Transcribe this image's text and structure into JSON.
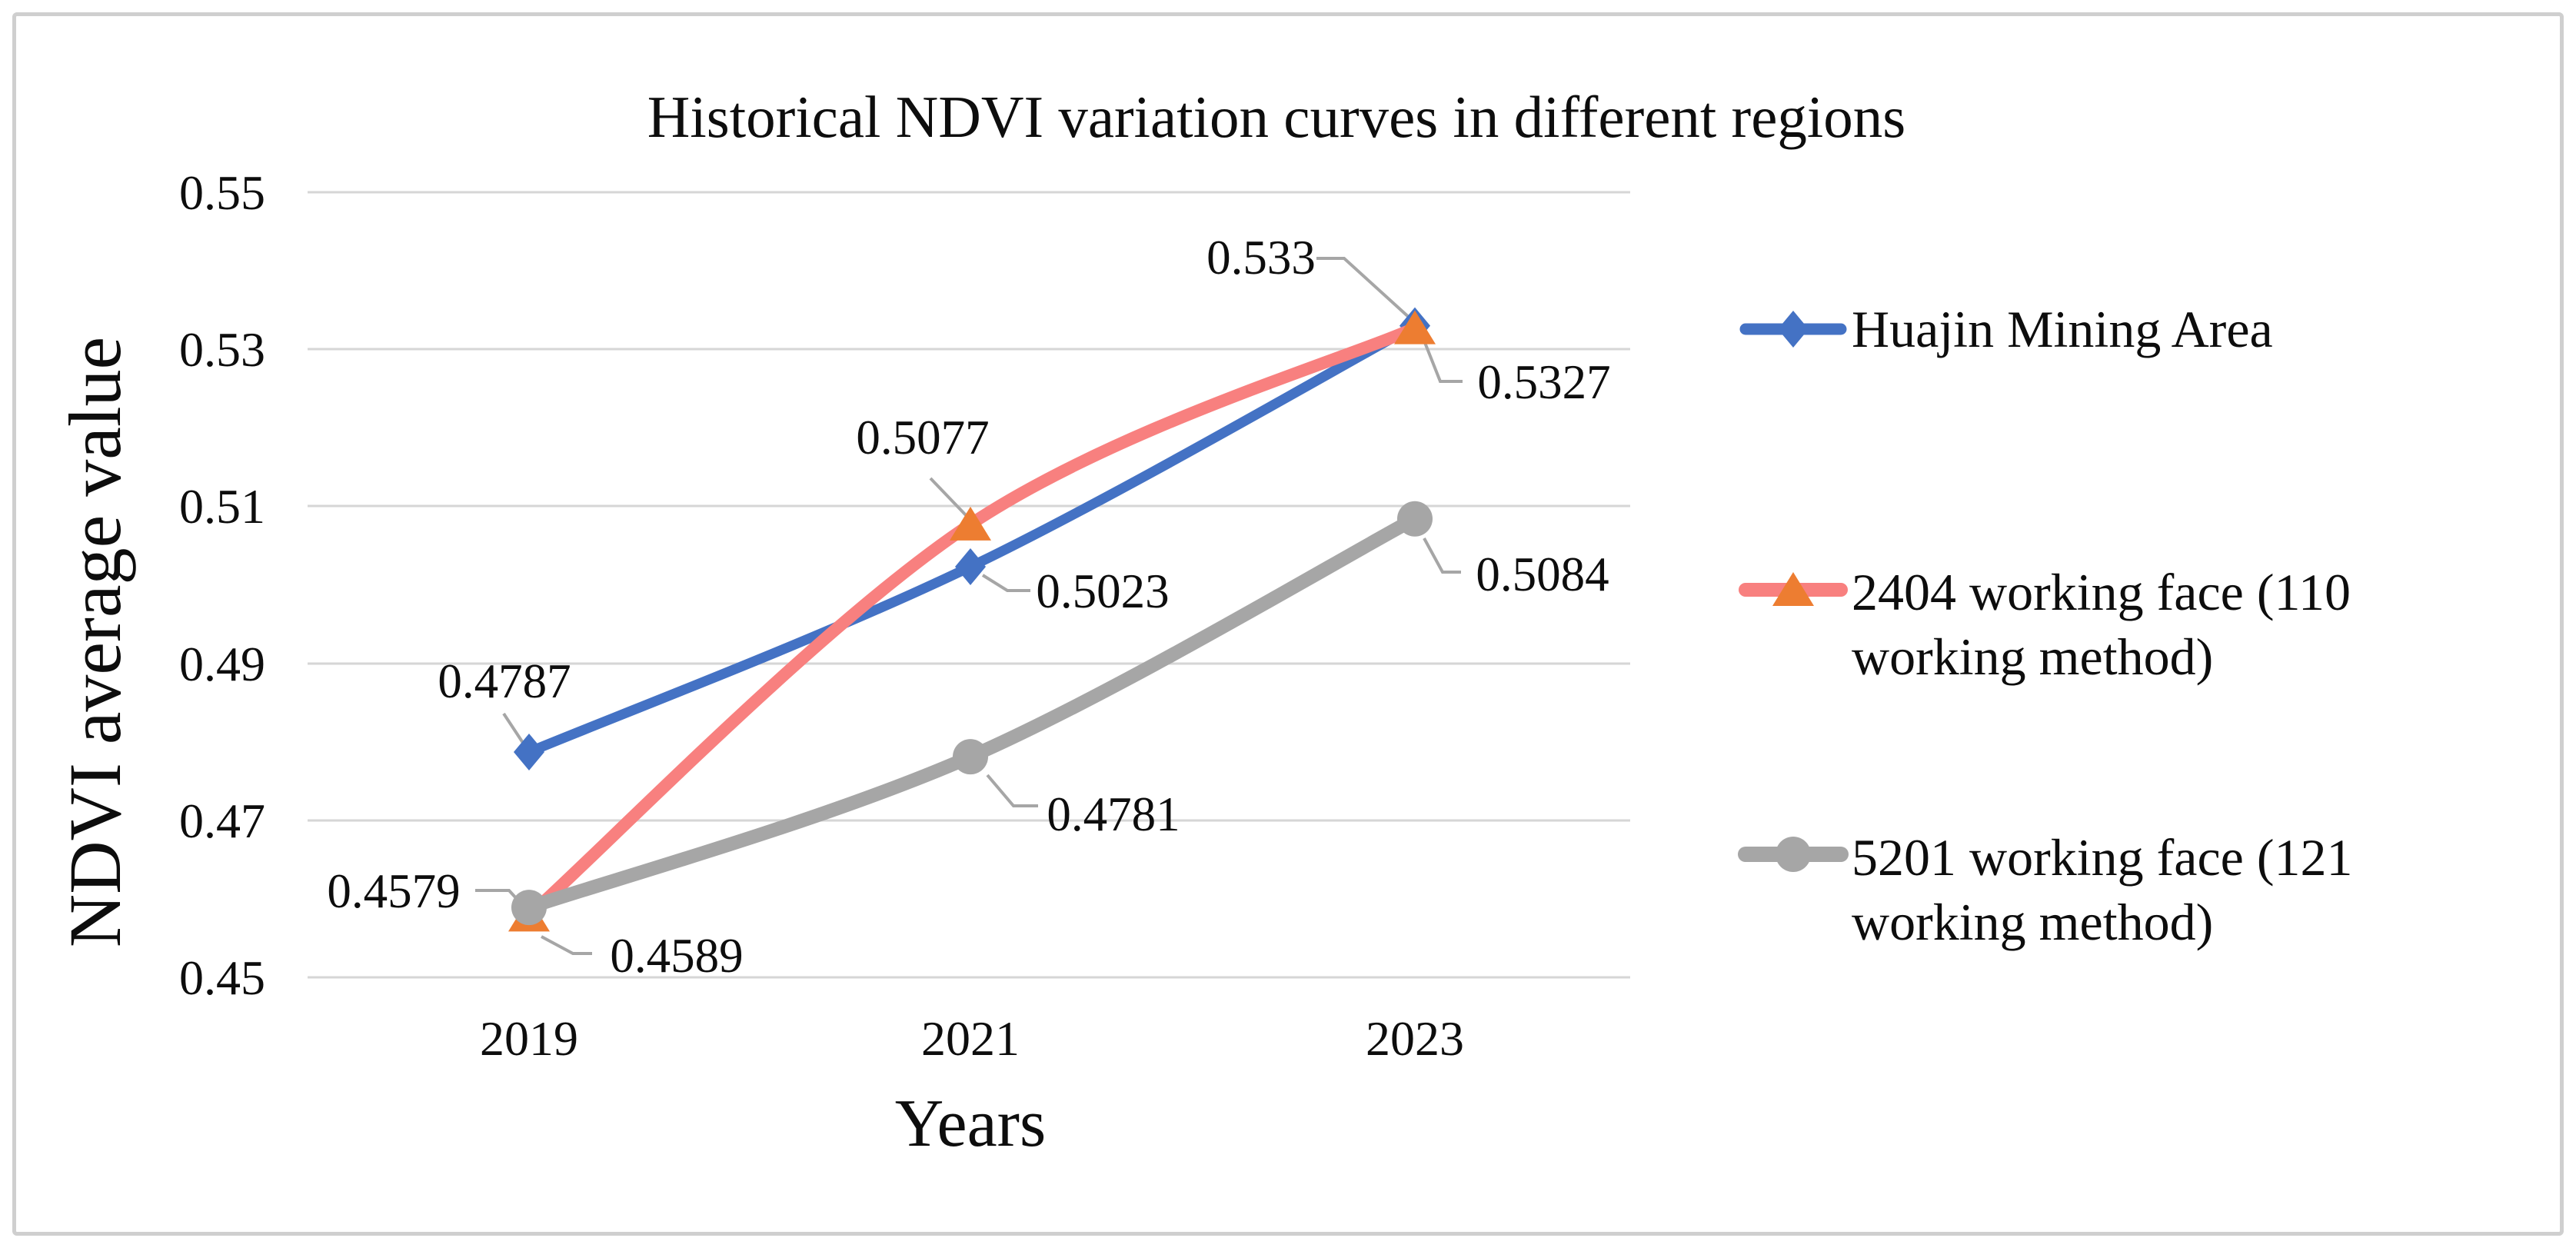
{
  "chart_data": {
    "type": "line",
    "title": "Historical NDVI variation curves in different regions",
    "xlabel": "Years",
    "ylabel": "NDVI average value",
    "categories": [
      "2019",
      "2021",
      "2023"
    ],
    "y_ticks": [
      "0.55",
      "0.53",
      "0.51",
      "0.49",
      "0.47",
      "0.45"
    ],
    "ylim": [
      0.45,
      0.55
    ],
    "grid": true,
    "line_smoothing": true,
    "legend_position": "right",
    "series": [
      {
        "name": "Huajin Mining Area",
        "marker": "diamond",
        "line_color": "#4472C4",
        "marker_color": "#4472C4",
        "values": [
          0.4787,
          0.5023,
          0.533
        ],
        "labels": [
          "0.4787",
          "0.5023",
          "0.533"
        ]
      },
      {
        "name": "2404 working face (110 working method)",
        "marker": "triangle",
        "line_color": "#F8807F",
        "marker_color": "#ED7D31",
        "values": [
          0.4579,
          0.5077,
          0.5327
        ],
        "labels": [
          "0.4579",
          "0.5077",
          "0.5327"
        ]
      },
      {
        "name": "5201 working face (121 working method)",
        "marker": "circle",
        "line_color": "#A6A6A6",
        "marker_color": "#A6A6A6",
        "values": [
          0.4589,
          0.4781,
          0.5084
        ],
        "labels": [
          "0.4589",
          "0.4781",
          "0.5084"
        ]
      }
    ]
  }
}
